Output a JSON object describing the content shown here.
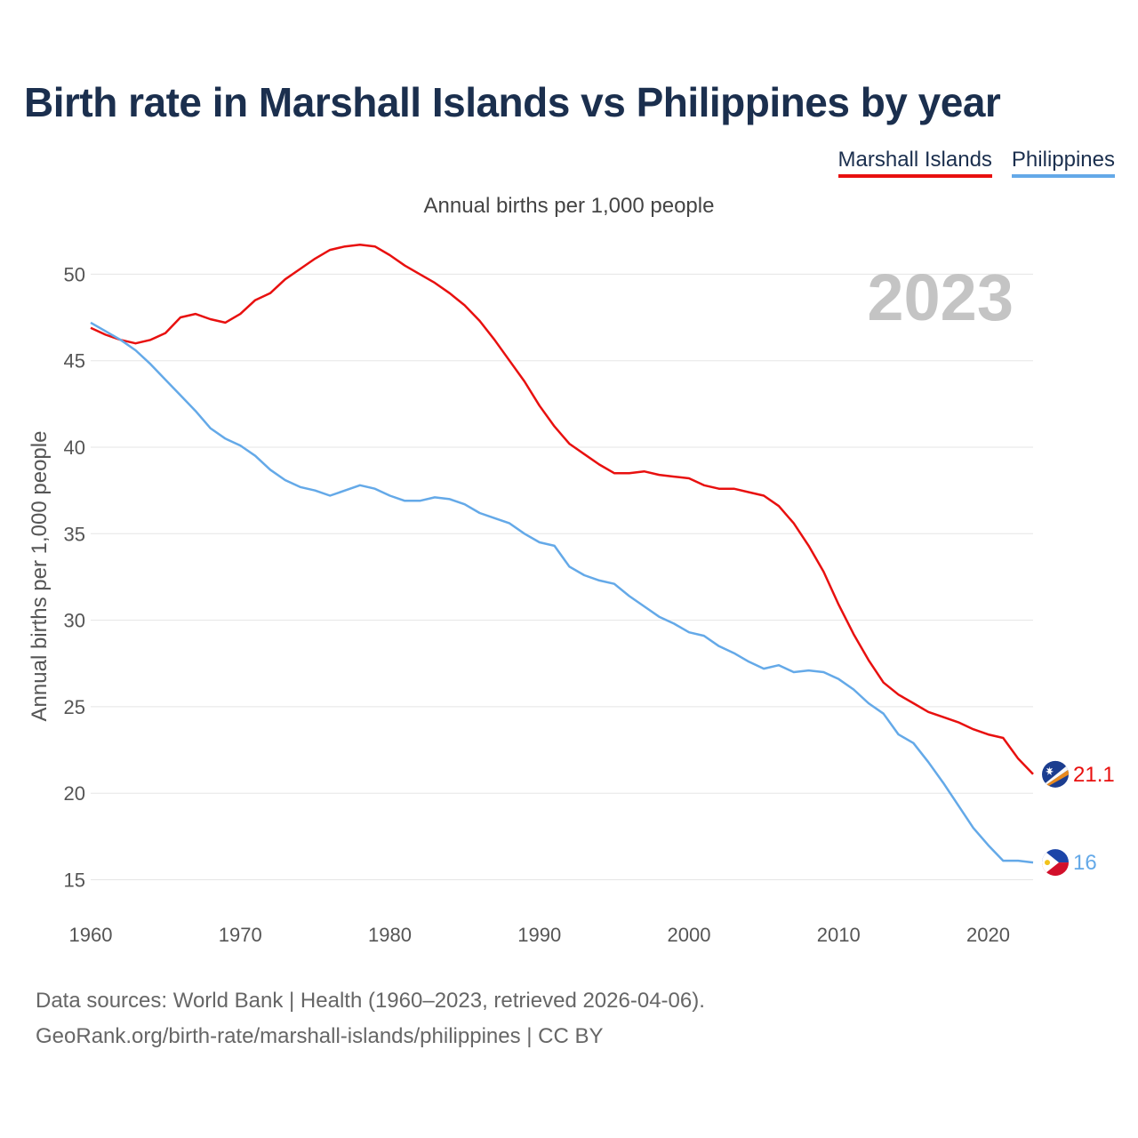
{
  "title": "Birth rate in Marshall Islands vs Philippines by year",
  "legend": [
    {
      "label": "Marshall Islands",
      "color": "#e8100f"
    },
    {
      "label": "Philippines",
      "color": "#64a9e8"
    }
  ],
  "subtitle": "Annual births per 1,000 people",
  "year_badge": "2023",
  "end_labels": {
    "marshall": "21.1",
    "philippines": "16"
  },
  "sources": {
    "line1": "Data sources: World Bank | Health (1960–2023, retrieved 2026-04-06).",
    "line2": "GeoRank.org/birth-rate/marshall-islands/philippines | CC BY"
  },
  "chart_data": {
    "type": "line",
    "title": "Birth rate in Marshall Islands vs Philippines by year",
    "xlabel": "",
    "ylabel": "Annual births per 1,000 people",
    "xlim": [
      1960,
      2023
    ],
    "ylim": [
      14,
      53
    ],
    "x_ticks": [
      1960,
      1970,
      1980,
      1990,
      2000,
      2010,
      2020
    ],
    "y_ticks": [
      15,
      20,
      25,
      30,
      35,
      40,
      45,
      50
    ],
    "grid": true,
    "legend_position": "top-right",
    "x": [
      1960,
      1961,
      1962,
      1963,
      1964,
      1965,
      1966,
      1967,
      1968,
      1969,
      1970,
      1971,
      1972,
      1973,
      1974,
      1975,
      1976,
      1977,
      1978,
      1979,
      1980,
      1981,
      1982,
      1983,
      1984,
      1985,
      1986,
      1987,
      1988,
      1989,
      1990,
      1991,
      1992,
      1993,
      1994,
      1995,
      1996,
      1997,
      1998,
      1999,
      2000,
      2001,
      2002,
      2003,
      2004,
      2005,
      2006,
      2007,
      2008,
      2009,
      2010,
      2011,
      2012,
      2013,
      2014,
      2015,
      2016,
      2017,
      2018,
      2019,
      2020,
      2021,
      2022,
      2023
    ],
    "series": [
      {
        "name": "Marshall Islands",
        "color": "#e8100f",
        "values": [
          46.9,
          46.5,
          46.2,
          46.0,
          46.2,
          46.6,
          47.5,
          47.7,
          47.4,
          47.2,
          47.7,
          48.5,
          48.9,
          49.7,
          50.3,
          50.9,
          51.4,
          51.6,
          51.7,
          51.6,
          51.1,
          50.5,
          50.0,
          49.5,
          48.9,
          48.2,
          47.3,
          46.2,
          45.0,
          43.8,
          42.4,
          41.2,
          40.2,
          39.6,
          39.0,
          38.5,
          38.5,
          38.6,
          38.4,
          38.3,
          38.2,
          37.8,
          37.6,
          37.6,
          37.4,
          37.2,
          36.6,
          35.6,
          34.3,
          32.8,
          30.9,
          29.2,
          27.7,
          26.4,
          25.7,
          25.2,
          24.7,
          24.4,
          24.1,
          23.7,
          23.4,
          23.2,
          22.0,
          21.1
        ]
      },
      {
        "name": "Philippines",
        "color": "#64a9e8",
        "values": [
          47.2,
          46.7,
          46.2,
          45.6,
          44.8,
          43.9,
          43.0,
          42.1,
          41.1,
          40.5,
          40.1,
          39.5,
          38.7,
          38.1,
          37.7,
          37.5,
          37.2,
          37.5,
          37.8,
          37.6,
          37.2,
          36.9,
          36.9,
          37.1,
          37.0,
          36.7,
          36.2,
          35.9,
          35.6,
          35.0,
          34.5,
          34.3,
          33.1,
          32.6,
          32.3,
          32.1,
          31.4,
          30.8,
          30.2,
          29.8,
          29.3,
          29.1,
          28.5,
          28.1,
          27.6,
          27.2,
          27.4,
          27.0,
          27.1,
          27.0,
          26.6,
          26.0,
          25.2,
          24.6,
          23.4,
          22.9,
          21.8,
          20.6,
          19.3,
          18.0,
          17.0,
          16.1,
          16.1,
          16.0
        ]
      }
    ]
  }
}
